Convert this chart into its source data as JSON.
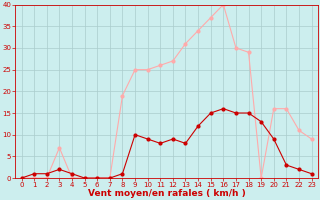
{
  "title": "",
  "xlabel": "Vent moyen/en rafales ( km/h )",
  "x_values": [
    0,
    1,
    2,
    3,
    4,
    5,
    6,
    7,
    8,
    9,
    10,
    11,
    12,
    13,
    14,
    15,
    16,
    17,
    18,
    19,
    20,
    21,
    22,
    23
  ],
  "y_mean": [
    0,
    1,
    1,
    2,
    1,
    0,
    0,
    0,
    1,
    10,
    9,
    8,
    9,
    8,
    12,
    15,
    16,
    15,
    15,
    13,
    9,
    3,
    2,
    1
  ],
  "y_gust": [
    0,
    0,
    0,
    7,
    0,
    0,
    0,
    0,
    19,
    25,
    25,
    26,
    27,
    31,
    34,
    37,
    40,
    30,
    29,
    0,
    16,
    16,
    11,
    9
  ],
  "mean_color": "#cc0000",
  "gust_color": "#ffaaaa",
  "bg_color": "#cceeee",
  "grid_color": "#aacccc",
  "ylim": [
    0,
    40
  ],
  "xlim": [
    -0.5,
    23.5
  ],
  "yticks": [
    0,
    5,
    10,
    15,
    20,
    25,
    30,
    35,
    40
  ],
  "xlabel_color": "#cc0000",
  "xlabel_fontsize": 6.5,
  "tick_fontsize": 5,
  "linewidth": 0.8,
  "markersize": 2.0
}
